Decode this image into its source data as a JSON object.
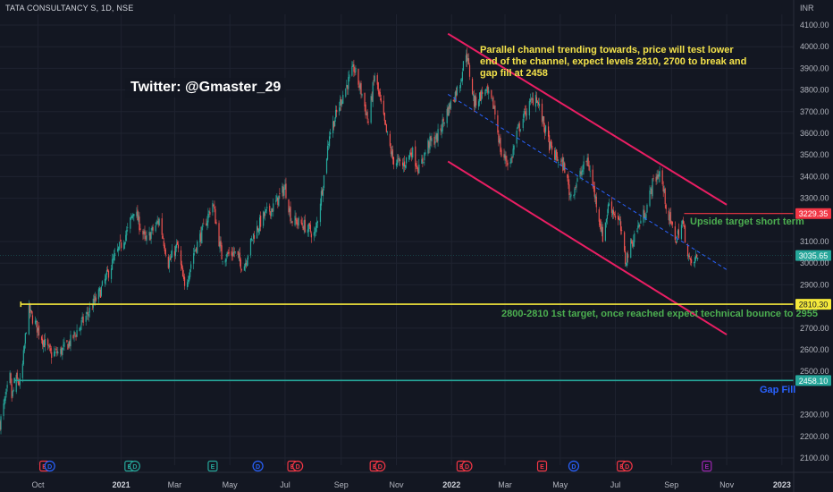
{
  "header": {
    "symbol": "TATA CONSULTANCY S, 1D, NSE",
    "currency": "INR"
  },
  "watermark": {
    "text": "Twitter: @Gmaster_29"
  },
  "annotations": {
    "channel_note": "Parallel channel trending towards, price will test lower end of the channel, expect levels 2810, 2700 to break and gap fill at 2458",
    "upside_note": "Upside target short term",
    "target_note": "2800-2810 1st target, once reached expect technical bounce to 2955",
    "gap_note": "Gap Fill"
  },
  "colors": {
    "background": "#131722",
    "grid": "#1f2330",
    "up": "#26a69a",
    "down": "#ef5350",
    "channel": "#e91e63",
    "midline": "#2962ff",
    "level_2810": "#f5e93b",
    "gap_fill": "#26a69a",
    "upside": "#f23645",
    "text_axis": "#b2b5be"
  },
  "chart_data": {
    "type": "candlestick",
    "title": "TATA CONSULTANCY S, 1D, NSE",
    "ylim": [
      2100,
      4100
    ],
    "y_ticks": [
      {
        "value": 4100,
        "label": "4100.00"
      },
      {
        "value": 4000,
        "label": "4000.00"
      },
      {
        "value": 3900,
        "label": "3900.00"
      },
      {
        "value": 3800,
        "label": "3800.00"
      },
      {
        "value": 3700,
        "label": "3700.00"
      },
      {
        "value": 3600,
        "label": "3600.00"
      },
      {
        "value": 3500,
        "label": "3500.00"
      },
      {
        "value": 3400,
        "label": "3400.00"
      },
      {
        "value": 3300,
        "label": "3300.00"
      },
      {
        "value": 3100,
        "label": "3100.00"
      },
      {
        "value": 3000,
        "label": "3000.00"
      },
      {
        "value": 2900,
        "label": "2900.00"
      },
      {
        "value": 2700,
        "label": "2700.00"
      },
      {
        "value": 2600,
        "label": "2600.00"
      },
      {
        "value": 2500,
        "label": "2500.00"
      },
      {
        "value": 2300,
        "label": "2300.00"
      },
      {
        "value": 2200,
        "label": "2200.00"
      },
      {
        "value": 2100,
        "label": "2100.00"
      }
    ],
    "x_ticks": [
      {
        "date": "2020-10-01",
        "label": "Oct",
        "bold": false
      },
      {
        "date": "2021-01-01",
        "label": "2021",
        "bold": true
      },
      {
        "date": "2021-03-01",
        "label": "Mar",
        "bold": false
      },
      {
        "date": "2021-05-01",
        "label": "May",
        "bold": false
      },
      {
        "date": "2021-07-01",
        "label": "Jul",
        "bold": false
      },
      {
        "date": "2021-09-01",
        "label": "Sep",
        "bold": false
      },
      {
        "date": "2021-11-01",
        "label": "Nov",
        "bold": false
      },
      {
        "date": "2022-01-01",
        "label": "2022",
        "bold": true
      },
      {
        "date": "2022-03-01",
        "label": "Mar",
        "bold": false
      },
      {
        "date": "2022-05-01",
        "label": "May",
        "bold": false
      },
      {
        "date": "2022-07-01",
        "label": "Jul",
        "bold": false
      },
      {
        "date": "2022-09-01",
        "label": "Sep",
        "bold": false
      },
      {
        "date": "2022-11-01",
        "label": "Nov",
        "bold": false
      },
      {
        "date": "2023-01-01",
        "label": "2023",
        "bold": true
      }
    ],
    "price_path": [
      {
        "date": "2020-08-20",
        "price": 2260
      },
      {
        "date": "2020-08-31",
        "price": 2470
      },
      {
        "date": "2020-09-02",
        "price": 2380
      },
      {
        "date": "2020-09-07",
        "price": 2460
      },
      {
        "date": "2020-09-12",
        "price": 2440
      },
      {
        "date": "2020-09-20",
        "price": 2790
      },
      {
        "date": "2020-09-28",
        "price": 2720
      },
      {
        "date": "2020-10-06",
        "price": 2650
      },
      {
        "date": "2020-10-15",
        "price": 2580
      },
      {
        "date": "2020-10-26",
        "price": 2590
      },
      {
        "date": "2020-11-06",
        "price": 2640
      },
      {
        "date": "2020-11-24",
        "price": 2760
      },
      {
        "date": "2020-12-09",
        "price": 2870
      },
      {
        "date": "2020-12-22",
        "price": 3000
      },
      {
        "date": "2021-01-08",
        "price": 3150
      },
      {
        "date": "2021-01-15",
        "price": 3250
      },
      {
        "date": "2021-01-28",
        "price": 3100
      },
      {
        "date": "2021-02-12",
        "price": 3200
      },
      {
        "date": "2021-02-22",
        "price": 3000
      },
      {
        "date": "2021-03-04",
        "price": 3080
      },
      {
        "date": "2021-03-12",
        "price": 2880
      },
      {
        "date": "2021-03-22",
        "price": 3050
      },
      {
        "date": "2021-04-01",
        "price": 3150
      },
      {
        "date": "2021-04-12",
        "price": 3280
      },
      {
        "date": "2021-04-22",
        "price": 3030
      },
      {
        "date": "2021-05-06",
        "price": 3050
      },
      {
        "date": "2021-05-16",
        "price": 2980
      },
      {
        "date": "2021-05-27",
        "price": 3130
      },
      {
        "date": "2021-06-08",
        "price": 3220
      },
      {
        "date": "2021-06-18",
        "price": 3260
      },
      {
        "date": "2021-07-01",
        "price": 3350
      },
      {
        "date": "2021-07-08",
        "price": 3200
      },
      {
        "date": "2021-07-20",
        "price": 3180
      },
      {
        "date": "2021-08-03",
        "price": 3130
      },
      {
        "date": "2021-08-13",
        "price": 3400
      },
      {
        "date": "2021-08-19",
        "price": 3600
      },
      {
        "date": "2021-08-26",
        "price": 3680
      },
      {
        "date": "2021-09-03",
        "price": 3780
      },
      {
        "date": "2021-09-10",
        "price": 3850
      },
      {
        "date": "2021-09-15",
        "price": 3900
      },
      {
        "date": "2021-09-24",
        "price": 3780
      },
      {
        "date": "2021-10-01",
        "price": 3650
      },
      {
        "date": "2021-10-08",
        "price": 3870
      },
      {
        "date": "2021-10-14",
        "price": 3750
      },
      {
        "date": "2021-10-20",
        "price": 3620
      },
      {
        "date": "2021-10-28",
        "price": 3480
      },
      {
        "date": "2021-11-08",
        "price": 3450
      },
      {
        "date": "2021-11-18",
        "price": 3520
      },
      {
        "date": "2021-11-26",
        "price": 3430
      },
      {
        "date": "2021-12-06",
        "price": 3550
      },
      {
        "date": "2021-12-16",
        "price": 3580
      },
      {
        "date": "2021-12-27",
        "price": 3700
      },
      {
        "date": "2022-01-10",
        "price": 3830
      },
      {
        "date": "2022-01-17",
        "price": 3980
      },
      {
        "date": "2022-01-26",
        "price": 3740
      },
      {
        "date": "2022-02-07",
        "price": 3800
      },
      {
        "date": "2022-02-17",
        "price": 3720
      },
      {
        "date": "2022-02-25",
        "price": 3500
      },
      {
        "date": "2022-03-07",
        "price": 3460
      },
      {
        "date": "2022-03-14",
        "price": 3600
      },
      {
        "date": "2022-03-24",
        "price": 3700
      },
      {
        "date": "2022-04-04",
        "price": 3780
      },
      {
        "date": "2022-04-12",
        "price": 3650
      },
      {
        "date": "2022-04-21",
        "price": 3520
      },
      {
        "date": "2022-05-06",
        "price": 3440
      },
      {
        "date": "2022-05-12",
        "price": 3310
      },
      {
        "date": "2022-05-20",
        "price": 3380
      },
      {
        "date": "2022-05-31",
        "price": 3480
      },
      {
        "date": "2022-06-10",
        "price": 3280
      },
      {
        "date": "2022-06-17",
        "price": 3120
      },
      {
        "date": "2022-06-24",
        "price": 3280
      },
      {
        "date": "2022-07-06",
        "price": 3180
      },
      {
        "date": "2022-07-12",
        "price": 3010
      },
      {
        "date": "2022-07-22",
        "price": 3130
      },
      {
        "date": "2022-08-04",
        "price": 3250
      },
      {
        "date": "2022-08-12",
        "price": 3380
      },
      {
        "date": "2022-08-19",
        "price": 3420
      },
      {
        "date": "2022-08-29",
        "price": 3210
      },
      {
        "date": "2022-09-06",
        "price": 3110
      },
      {
        "date": "2022-09-13",
        "price": 3190
      },
      {
        "date": "2022-09-22",
        "price": 2990
      },
      {
        "date": "2022-09-30",
        "price": 3030
      }
    ],
    "channel_upper": [
      {
        "date": "2021-12-28",
        "price": 4060
      },
      {
        "date": "2022-11-01",
        "price": 3270
      }
    ],
    "channel_lower": [
      {
        "date": "2021-12-28",
        "price": 3470
      },
      {
        "date": "2022-11-01",
        "price": 2670
      }
    ],
    "channel_mid": [
      {
        "date": "2021-12-28",
        "price": 3780
      },
      {
        "date": "2022-11-01",
        "price": 2970
      }
    ],
    "levels": [
      {
        "name": "level-2810",
        "price": 2810.3,
        "label": "2810.30",
        "from": "2020-09-12",
        "color": "#f5e93b"
      },
      {
        "name": "gap-fill",
        "price": 2458.1,
        "label": "2458.10",
        "from": "2020-09-05",
        "color": "#26a69a"
      }
    ],
    "upside_target": {
      "price": 3229.35,
      "label": "3229.35",
      "from": "2022-09-15",
      "color": "#f23645"
    },
    "last_price": {
      "price": 3035.65,
      "label": "3035.65",
      "color": "#26a69a"
    },
    "events": [
      {
        "date": "2020-10-08",
        "kind": "E",
        "color": "#f23645"
      },
      {
        "date": "2020-10-14",
        "kind": "D",
        "color": "#2962ff"
      },
      {
        "date": "2021-01-10",
        "kind": "E",
        "color": "#26a69a"
      },
      {
        "date": "2021-01-16",
        "kind": "D",
        "color": "#26a69a"
      },
      {
        "date": "2021-04-12",
        "kind": "E",
        "color": "#26a69a"
      },
      {
        "date": "2021-06-01",
        "kind": "D",
        "color": "#2962ff"
      },
      {
        "date": "2021-07-09",
        "kind": "E",
        "color": "#f23645"
      },
      {
        "date": "2021-07-15",
        "kind": "D",
        "color": "#f23645"
      },
      {
        "date": "2021-10-08",
        "kind": "E",
        "color": "#f23645"
      },
      {
        "date": "2021-10-14",
        "kind": "D",
        "color": "#f23645"
      },
      {
        "date": "2022-01-12",
        "kind": "E",
        "color": "#f23645"
      },
      {
        "date": "2022-01-18",
        "kind": "D",
        "color": "#f23645"
      },
      {
        "date": "2022-04-11",
        "kind": "E",
        "color": "#f23645"
      },
      {
        "date": "2022-05-16",
        "kind": "D",
        "color": "#2962ff"
      },
      {
        "date": "2022-07-08",
        "kind": "E",
        "color": "#f23645"
      },
      {
        "date": "2022-07-14",
        "kind": "D",
        "color": "#f23645"
      },
      {
        "date": "2022-10-10",
        "kind": "E",
        "color": "#9c27b0"
      }
    ]
  }
}
